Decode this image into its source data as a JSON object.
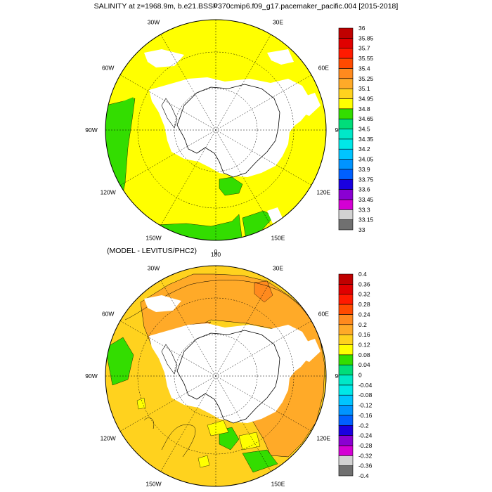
{
  "figure": {
    "title": "SALINITY at z=1968.9m, b.e21.BSSP370cmip6.f09_g17.pacemaker_pacific.004 [2015-2018]",
    "subtitle": "(MODEL - LEVITUS/PHC2)"
  },
  "chart_data": [
    {
      "type": "heatmap",
      "projection": "south-polar-stereographic",
      "title": "SALINITY at z=1968.9m, b.e21.BSSP370cmip6.f09_g17.pacemaker_pacific.004 [2015-2018]",
      "longitude_labels": [
        "0",
        "30E",
        "60E",
        "90E",
        "120E",
        "150E",
        "180",
        "150W",
        "120W",
        "90W",
        "60W",
        "30W"
      ],
      "colorbar_levels": [
        "33",
        "33.15",
        "33.3",
        "33.45",
        "33.6",
        "33.75",
        "33.9",
        "34.05",
        "34.2",
        "34.35",
        "34.5",
        "34.65",
        "34.8",
        "34.95",
        "35.1",
        "35.25",
        "35.4",
        "35.55",
        "35.7",
        "35.85",
        "36"
      ],
      "colorbar_colors": [
        "#707070",
        "#d2d2d2",
        "#d400d4",
        "#8a00d2",
        "#1a00e0",
        "#0060ff",
        "#0094ff",
        "#00c4ff",
        "#00e8e8",
        "#00e8c8",
        "#00dd7a",
        "#33dd00",
        "#ffff00",
        "#ffd21e",
        "#ffaa28",
        "#ff8a1e",
        "#ff4a00",
        "#ff1a00",
        "#e00000",
        "#c00000"
      ],
      "dominant_value_range": [
        34.8,
        35.1
      ],
      "grid": true
    },
    {
      "type": "heatmap",
      "projection": "south-polar-stereographic",
      "title": "(MODEL - LEVITUS/PHC2)",
      "longitude_labels": [
        "0",
        "30E",
        "60E",
        "90E",
        "120E",
        "150E",
        "180",
        "150W",
        "120W",
        "90W",
        "60W",
        "30W"
      ],
      "colorbar_levels": [
        "-0.4",
        "-0.36",
        "-0.32",
        "-0.28",
        "-0.24",
        "-0.2",
        "-0.16",
        "-0.12",
        "-0.08",
        "-0.04",
        "0",
        "0.04",
        "0.08",
        "0.12",
        "0.16",
        "0.2",
        "0.24",
        "0.28",
        "0.32",
        "0.36",
        "0.4"
      ],
      "colorbar_colors": [
        "#707070",
        "#d2d2d2",
        "#d400d4",
        "#8a00d2",
        "#1a00e0",
        "#0060ff",
        "#0094ff",
        "#00c4ff",
        "#00e8e8",
        "#00e8c8",
        "#00dd7a",
        "#33dd00",
        "#ffff00",
        "#ffd21e",
        "#ffaa28",
        "#ff8a1e",
        "#ff4a00",
        "#ff1a00",
        "#e00000",
        "#c00000"
      ],
      "dominant_value_range": [
        0.12,
        0.28
      ],
      "grid": true
    }
  ]
}
